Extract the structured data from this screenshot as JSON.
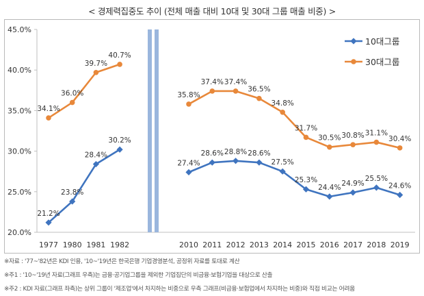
{
  "title": "< 경제력집중도 추이 (전체 매출 대비 10대 및 30대 그룹 매출 비중) >",
  "colors": {
    "series10": "#3f74bf",
    "series30": "#e8883a",
    "separator": "#9ab6dd",
    "axis": "#bfbfbf",
    "text": "#333333"
  },
  "chart_data": {
    "type": "line",
    "title": "< 경제력집중도 추이 (전체 매출 대비 10대 및 30대 그룹 매출 비중) >",
    "ylim": [
      20.0,
      45.0
    ],
    "yticks": [
      "45.0%",
      "40.0%",
      "35.0%",
      "30.0%",
      "25.0%",
      "20.0%"
    ],
    "yticks_values": [
      45,
      40,
      35,
      30,
      25,
      20
    ],
    "grid": false,
    "legend_position": "top-right",
    "panels": [
      {
        "name": "left",
        "categories": [
          "1977",
          "1980",
          "1981",
          "1982"
        ],
        "series": [
          {
            "name": "10대그룹",
            "values": [
              21.2,
              23.8,
              28.4,
              30.2
            ],
            "labels": [
              "21.2%",
              "23.8%",
              "28.4%",
              "30.2%"
            ]
          },
          {
            "name": "30대그룹",
            "values": [
              34.1,
              36.0,
              39.7,
              40.7
            ],
            "labels": [
              "34.1%",
              "36.0%",
              "39.7%",
              "40.7%"
            ]
          }
        ]
      },
      {
        "name": "right",
        "categories": [
          "2010",
          "2011",
          "2012",
          "2013",
          "2014",
          "2015",
          "2016",
          "2017",
          "2018",
          "2019"
        ],
        "series": [
          {
            "name": "10대그룹",
            "values": [
              27.4,
              28.6,
              28.8,
              28.6,
              27.5,
              25.3,
              24.4,
              24.9,
              25.5,
              24.6
            ],
            "labels": [
              "27.4%",
              "28.6%",
              "28.8%",
              "28.6%",
              "27.5%",
              "25.3%",
              "24.4%",
              "24.9%",
              "25.5%",
              "24.6%"
            ]
          },
          {
            "name": "30대그룹",
            "values": [
              35.8,
              37.4,
              37.4,
              36.5,
              34.8,
              31.7,
              30.5,
              30.8,
              31.1,
              30.4
            ],
            "labels": [
              "35.8%",
              "37.4%",
              "37.4%",
              "36.5%",
              "34.8%",
              "31.7%",
              "30.5%",
              "30.8%",
              "31.1%",
              "30.4%"
            ]
          }
        ]
      }
    ],
    "legend": [
      "10대그룹",
      "30대그룹"
    ]
  },
  "notes": [
    "※자료 : '77~'82년은 KDI 인용, '10~'19년은 한국은행 기업경영분석, 공정위 자료를 토대로 계산",
    "※주1 : '10~'19년 자료(그래프 우측)는 금융·공기업그룹을 제외한 기업집단의 비금융·보험기업을 대상으로 산출",
    "※주2 : KDI 자료(그래프 좌측)는 상위 그룹이 '제조업'에서 차지하는 비중으로 우측 그래프(비금융·보험업에서 차지하는 비중)와 직접 비교는 어려움"
  ]
}
